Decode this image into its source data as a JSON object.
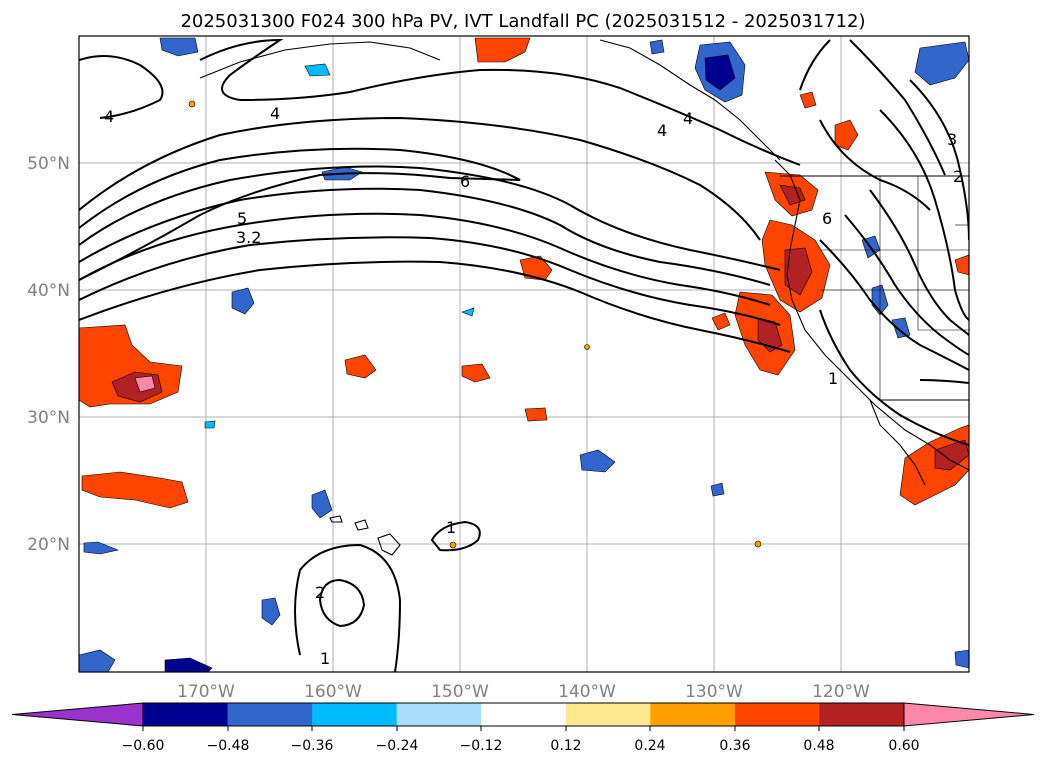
{
  "title": "2025031300 F024 300 hPa PV, IVT Landfall PC (2025031512 - 2025031712)",
  "map": {
    "lat_labels": [
      "50°N",
      "40°N",
      "30°N",
      "20°N"
    ],
    "lon_labels": [
      "170°W",
      "160°W",
      "150°W",
      "140°W",
      "130°W",
      "120°W"
    ],
    "gridlines": true,
    "contour_labels": [
      "4",
      "4",
      "4",
      "4",
      "6",
      "5",
      "3.2",
      "6",
      "1",
      "1",
      "2",
      "1",
      "3",
      "2"
    ]
  },
  "colorbar": {
    "tick_labels": [
      "−0.60",
      "−0.48",
      "−0.36",
      "−0.24",
      "−0.12",
      "0.12",
      "0.24",
      "0.36",
      "0.48",
      "0.60"
    ],
    "colors": [
      "#9933cc",
      "#000090",
      "#3366cc",
      "#00bbff",
      "#aaddf8",
      "#ffffff",
      "#ffe891",
      "#ffa000",
      "#ff4400",
      "#b22222",
      "#ff88aa"
    ],
    "extend": "both"
  }
}
